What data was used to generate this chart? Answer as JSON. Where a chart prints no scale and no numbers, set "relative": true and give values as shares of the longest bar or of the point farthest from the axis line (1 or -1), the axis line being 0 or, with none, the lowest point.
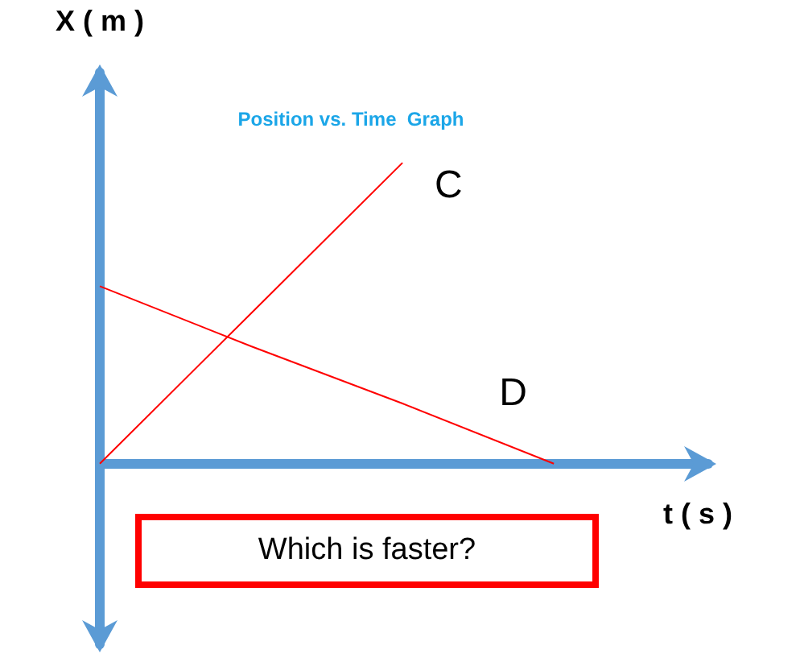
{
  "chart_data": {
    "type": "line",
    "title": "Position vs. Time  Graph",
    "xlabel": "t ( s )",
    "ylabel": "X ( m )",
    "relative": true,
    "marker": "none",
    "line_style": "solid",
    "grid": false,
    "legend": false,
    "annotations": [
      "Which is faster?"
    ],
    "categories": [
      null,
      null,
      null,
      null
    ],
    "series": [
      {
        "name": "C",
        "color": "#ff0000",
        "values": [
          0,
          0.5,
          1,
          null
        ]
      },
      {
        "name": "D",
        "color": "#ff0000",
        "values": [
          0.59,
          0.39,
          0.2,
          0
        ]
      }
    ]
  }
}
